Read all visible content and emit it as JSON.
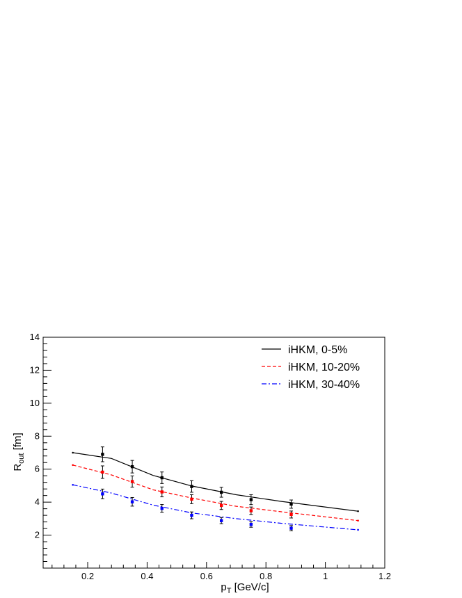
{
  "chart_data": {
    "type": "line",
    "title": "",
    "xlabel": "p",
    "xlabel_sub": "T",
    "xlabel_unit": " [GeV/c]",
    "ylabel": "R",
    "ylabel_sub": "out",
    "ylabel_unit": " [fm]",
    "xlim": [
      0.05,
      1.2
    ],
    "ylim": [
      0,
      14
    ],
    "x_ticks": [
      0.2,
      0.4,
      0.6,
      0.8,
      1,
      1.2
    ],
    "x_tick_labels": [
      "0.2",
      "0.4",
      "0.6",
      "0.8",
      "1",
      "1.2"
    ],
    "y_ticks": [
      2,
      4,
      6,
      8,
      10,
      12,
      14
    ],
    "y_tick_labels": [
      "2",
      "4",
      "6",
      "8",
      "10",
      "12",
      "14"
    ],
    "grid": false,
    "legend_position": "top-right",
    "series": [
      {
        "name": "iHKM, 0-5%",
        "color": "#000000",
        "style": "solid",
        "x": [
          0.15,
          0.28,
          0.42,
          0.55,
          0.7,
          0.85,
          1.11
        ],
        "y": [
          7.0,
          6.65,
          5.62,
          4.98,
          4.45,
          4.05,
          3.45
        ]
      },
      {
        "name": "iHKM, 10-20%",
        "color": "#ff0000",
        "style": "dashed",
        "x": [
          0.15,
          0.28,
          0.42,
          0.55,
          0.7,
          0.85,
          1.11
        ],
        "y": [
          6.25,
          5.65,
          4.75,
          4.25,
          3.75,
          3.42,
          2.88
        ]
      },
      {
        "name": "iHKM, 30-40%",
        "color": "#0000ff",
        "style": "dashdot",
        "x": [
          0.15,
          0.28,
          0.42,
          0.55,
          0.7,
          0.85,
          1.11
        ],
        "y": [
          5.05,
          4.55,
          3.82,
          3.35,
          3.0,
          2.72,
          2.32
        ]
      }
    ],
    "data_points": [
      {
        "color": "#000000",
        "x": [
          0.25,
          0.35,
          0.45,
          0.55,
          0.65,
          0.75,
          0.885
        ],
        "y": [
          6.9,
          6.15,
          5.48,
          4.95,
          4.6,
          4.15,
          3.88
        ],
        "err": [
          0.45,
          0.38,
          0.35,
          0.35,
          0.3,
          0.3,
          0.25
        ]
      },
      {
        "color": "#ff0000",
        "x": [
          0.25,
          0.35,
          0.45,
          0.55,
          0.65,
          0.75,
          0.885
        ],
        "y": [
          5.82,
          5.25,
          4.62,
          4.18,
          3.8,
          3.48,
          3.25
        ]
      },
      {
        "color": "#0000ff",
        "x": [
          0.25,
          0.35,
          0.45,
          0.55,
          0.65,
          0.75,
          0.885
        ],
        "y": [
          4.5,
          4.02,
          3.62,
          3.2,
          2.88,
          2.65,
          2.42
        ]
      }
    ]
  }
}
